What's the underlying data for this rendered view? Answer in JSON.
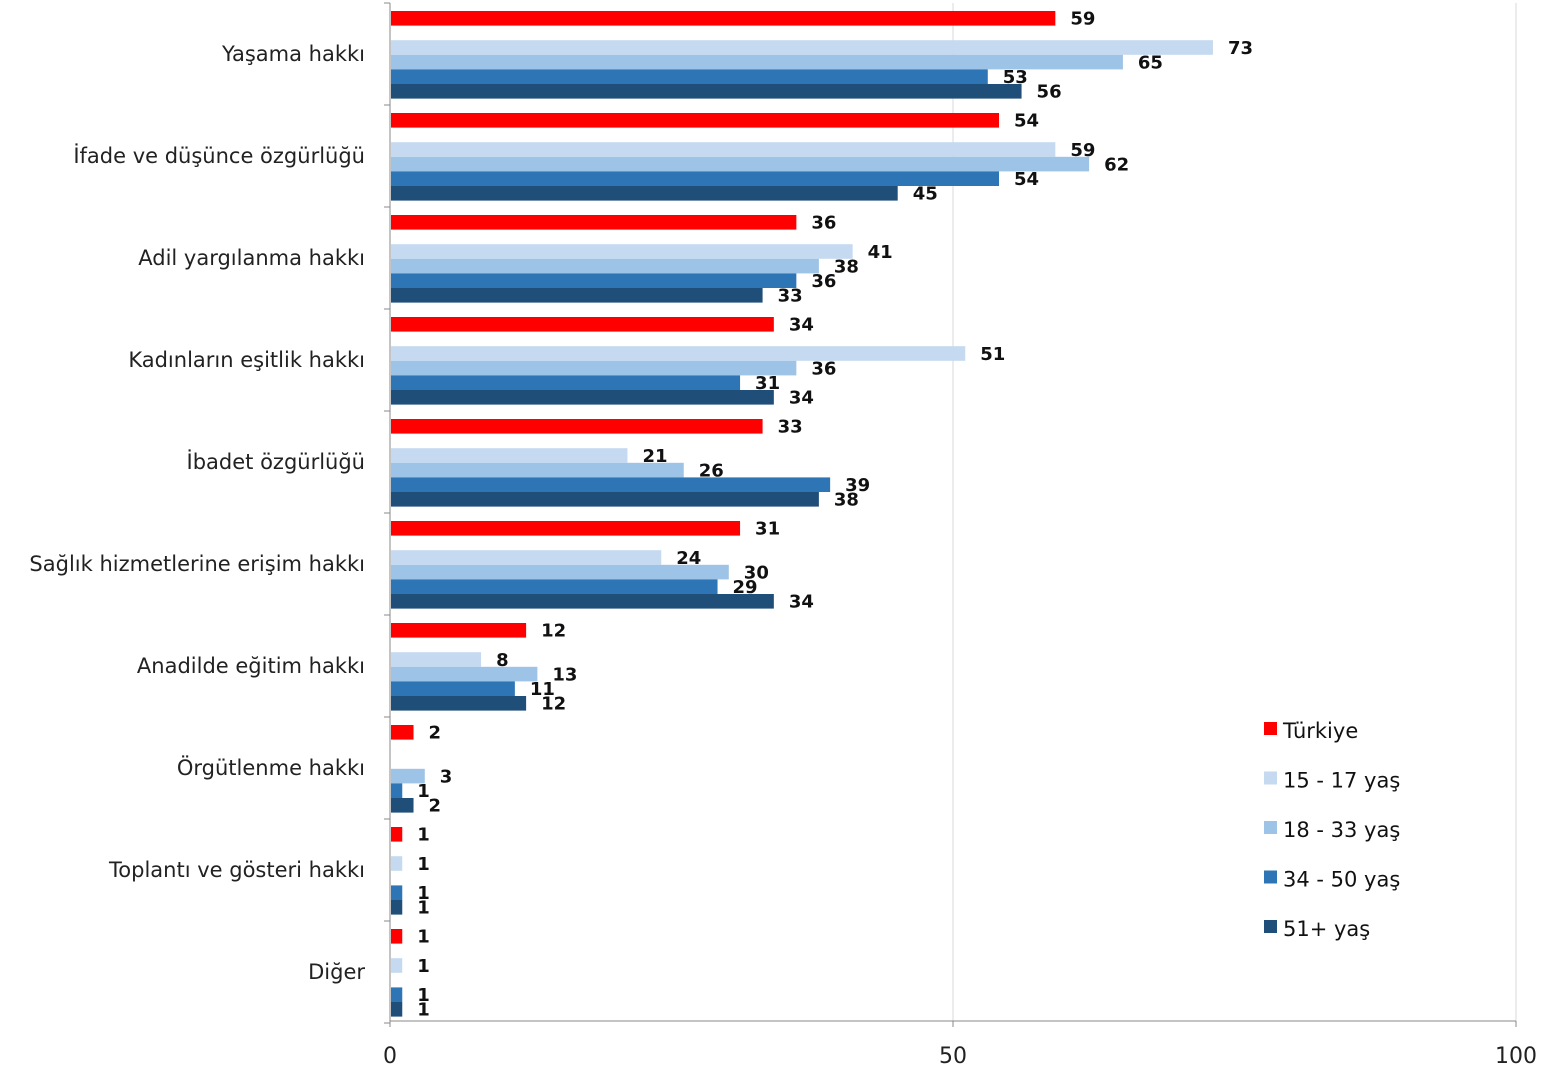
{
  "chart_data": {
    "type": "bar",
    "orientation": "horizontal",
    "categories": [
      "Yaşama hakkı",
      "İfade ve düşünce özgürlüğü",
      "Adil yargılanma hakkı",
      "Kadınların eşitlik hakkı",
      "İbadet özgürlüğü",
      "Sağlık hizmetlerine erişim hakkı",
      "Anadilde eğitim hakkı",
      "Örgütlenme hakkı",
      "Toplantı ve gösteri hakkı",
      "Diğer"
    ],
    "series": [
      {
        "name": "Türkiye",
        "color": "#ff0000",
        "values": [
          59,
          54,
          36,
          34,
          33,
          31,
          12,
          2,
          1,
          1
        ]
      },
      {
        "name": "15 - 17 yaş",
        "color": "#c5daf0",
        "values": [
          73,
          59,
          41,
          51,
          21,
          24,
          8,
          null,
          1,
          1
        ]
      },
      {
        "name": "18 - 33 yaş",
        "color": "#9dc3e6",
        "values": [
          65,
          62,
          38,
          36,
          26,
          30,
          13,
          3,
          null,
          null
        ]
      },
      {
        "name": "34 - 50 yaş",
        "color": "#2e75b6",
        "values": [
          53,
          54,
          36,
          31,
          39,
          29,
          11,
          1,
          1,
          1
        ]
      },
      {
        "name": "51+ yaş",
        "color": "#1f4e79",
        "values": [
          56,
          45,
          33,
          34,
          38,
          34,
          12,
          2,
          1,
          1
        ]
      }
    ],
    "xlim": [
      0,
      100
    ],
    "xticks": [
      "0",
      "50",
      "100"
    ],
    "grid": true,
    "legend_position": "right-bottom",
    "title": "",
    "xlabel": "",
    "ylabel": ""
  }
}
